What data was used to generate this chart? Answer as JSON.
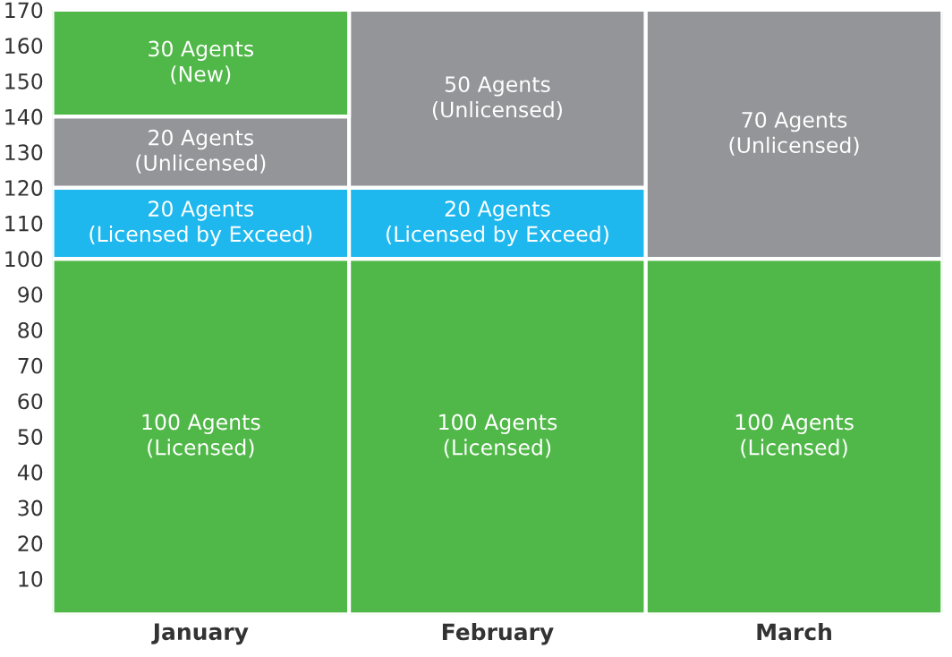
{
  "chart_data": {
    "type": "bar",
    "stacked": true,
    "categories": [
      "January",
      "February",
      "March"
    ],
    "series": [
      {
        "color": "#50b848",
        "values": [
          100,
          100,
          100
        ],
        "value_labels": [
          "100 Agents\n(Licensed)",
          "100 Agents\n(Licensed)",
          "100 Agents\n(Licensed)"
        ]
      },
      {
        "color": "#1fb8ee",
        "values": [
          20,
          20,
          null
        ],
        "value_labels": [
          "20 Agents\n(Licensed by Exceed)",
          "20 Agents\n(Licensed by Exceed)",
          null
        ]
      },
      {
        "color": "#939598",
        "values": [
          20,
          50,
          70
        ],
        "value_labels": [
          "20 Agents\n(Unlicensed)",
          "50 Agents\n(Unlicensed)",
          "70 Agents\n(Unlicensed)"
        ]
      },
      {
        "color": "#50b848",
        "values": [
          30,
          null,
          null
        ],
        "value_labels": [
          "30 Agents\n(New)",
          null,
          null
        ]
      }
    ],
    "ylim": [
      0,
      170
    ],
    "yticks": [
      10,
      20,
      30,
      40,
      50,
      60,
      70,
      80,
      90,
      100,
      110,
      120,
      130,
      140,
      150,
      160,
      170
    ],
    "grid": false,
    "legend": false
  }
}
